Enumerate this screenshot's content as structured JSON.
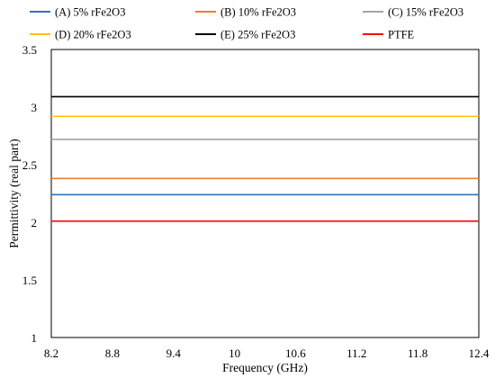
{
  "chart_data": {
    "type": "line",
    "xlabel": "Frequency (GHz)",
    "ylabel": "Permittivity  (real part)",
    "xlim": [
      8.2,
      12.4
    ],
    "ylim": [
      1,
      3.5
    ],
    "x_ticks": [
      "8.2",
      "8.8",
      "9.4",
      "10",
      "10.6",
      "11.2",
      "11.8",
      "12.4"
    ],
    "y_ticks": [
      "1",
      "1.5",
      "2",
      "2.5",
      "3",
      "3.5"
    ],
    "grid": false,
    "legend_position": "top",
    "x": [
      8.2,
      12.4
    ],
    "series": [
      {
        "name": "(A) 5% rFe2O3",
        "color": "#2E75B6",
        "values": [
          2.24,
          2.24
        ]
      },
      {
        "name": "(B) 10% rFe2O3",
        "color": "#ED7D31",
        "values": [
          2.38,
          2.38
        ]
      },
      {
        "name": "(C) 15% rFe2O3",
        "color": "#A5A5A5",
        "values": [
          2.72,
          2.72
        ]
      },
      {
        "name": "(D) 20% rFe2O3",
        "color": "#FFC000",
        "values": [
          2.92,
          2.92
        ]
      },
      {
        "name": "(E) 25% rFe2O3",
        "color": "#000000",
        "values": [
          3.09,
          3.09
        ]
      },
      {
        "name": "PTFE",
        "color": "#FF0000",
        "values": [
          2.01,
          2.01
        ]
      }
    ]
  }
}
